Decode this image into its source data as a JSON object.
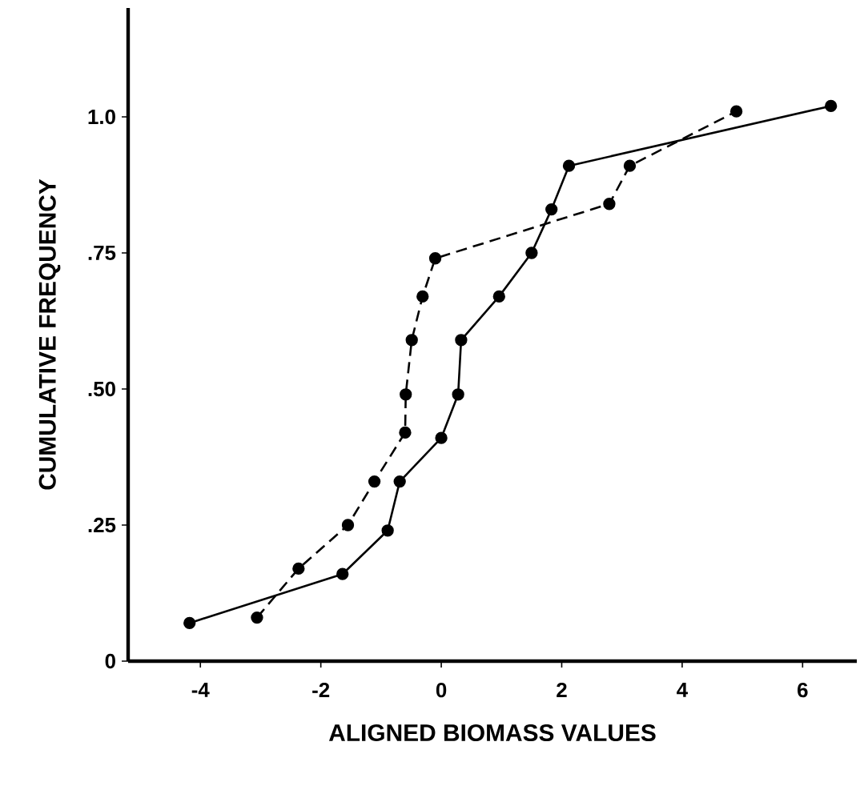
{
  "chart_data": {
    "type": "line",
    "xlabel": "ALIGNED BIOMASS VALUES",
    "ylabel": "CUMULATIVE FREQUENCY",
    "xlim": [
      -5.2,
      6.9
    ],
    "ylim": [
      0,
      1.2
    ],
    "xticks": [
      -4,
      -2,
      0,
      2,
      4,
      6
    ],
    "yticks": [
      0,
      {
        "value": 0.25,
        "label": ".25"
      },
      {
        "value": 0.5,
        "label": ".50"
      },
      {
        "value": 0.75,
        "label": ".75"
      },
      {
        "value": 1.0,
        "label": "1.0"
      }
    ],
    "marker": "circle",
    "grid": false,
    "series": [
      {
        "color": "#000000",
        "line_style": "solid",
        "x": [
          -4.18,
          -1.64,
          -0.89,
          -0.69,
          0.0,
          0.28,
          0.33,
          0.96,
          1.5,
          1.83,
          2.12,
          6.47
        ],
        "values": [
          0.07,
          0.16,
          0.24,
          0.33,
          0.41,
          0.49,
          0.59,
          0.67,
          0.75,
          0.83,
          0.91,
          1.02
        ]
      },
      {
        "color": "#000000",
        "line_style": "dashed",
        "x": [
          -3.06,
          -2.37,
          -1.55,
          -1.11,
          -0.6,
          -0.59,
          -0.49,
          -0.31,
          -0.1,
          2.79,
          3.13,
          4.9
        ],
        "values": [
          0.08,
          0.17,
          0.25,
          0.33,
          0.42,
          0.49,
          0.59,
          0.67,
          0.74,
          0.84,
          0.91,
          1.01
        ]
      }
    ]
  }
}
